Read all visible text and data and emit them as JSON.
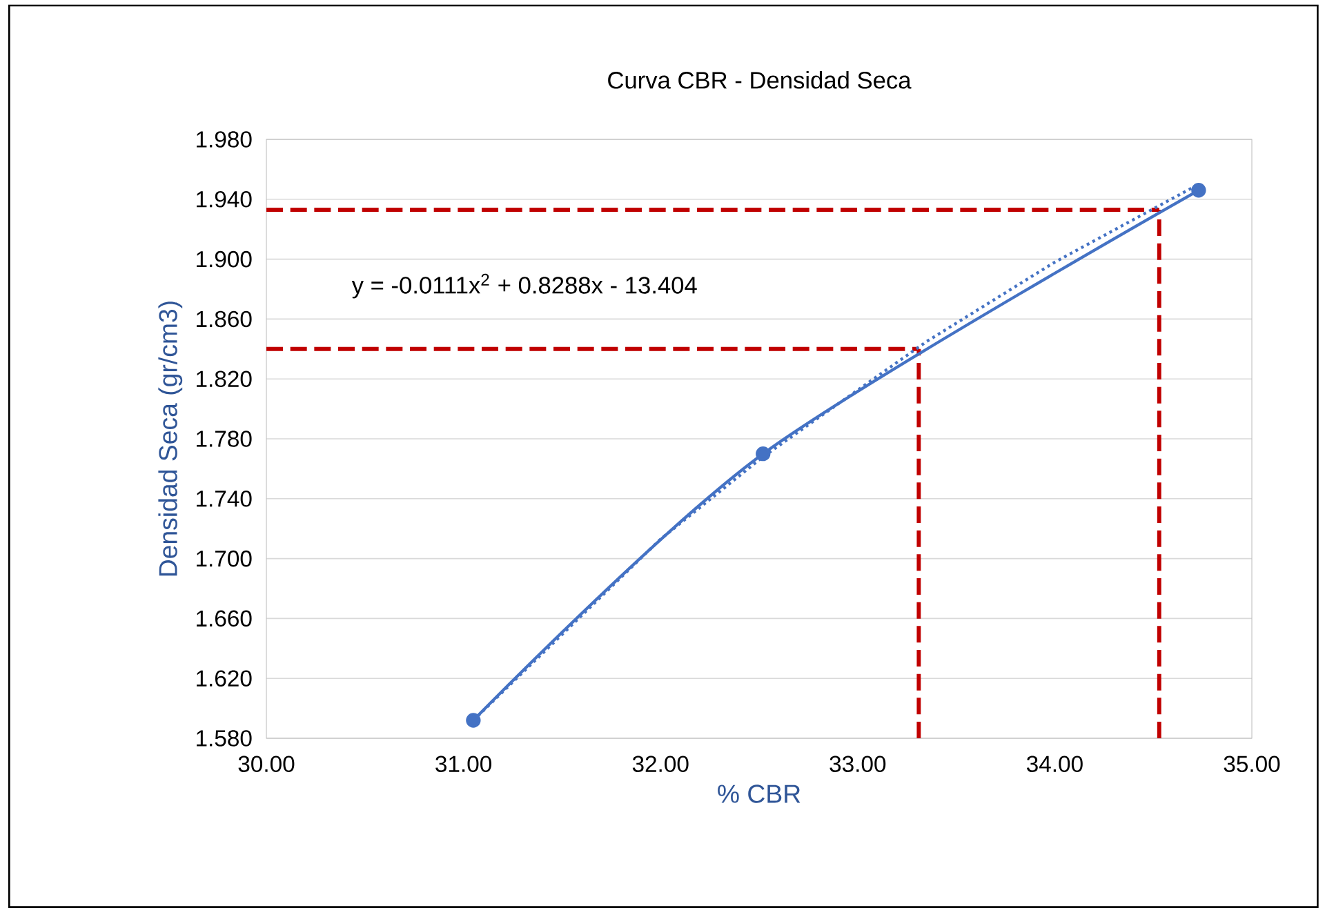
{
  "chart_data": {
    "type": "line",
    "title": "Curva CBR - Densidad Seca",
    "xlabel": "% CBR",
    "ylabel": "Densidad Seca (gr/cm3)",
    "series": [
      {
        "color": "#4472c4",
        "x": [
          31.05,
          32.52,
          34.73
        ],
        "values": [
          1.592,
          1.77,
          1.946
        ],
        "marker": "circle",
        "line_style": "solid"
      },
      {
        "type": "line",
        "color": "#4472c4",
        "x": [
          31.05,
          32.0,
          32.52,
          33.35,
          34.0,
          34.73
        ],
        "values": [
          1.592,
          1.713,
          1.768,
          1.845,
          1.898,
          1.95
        ],
        "marker": "none",
        "line_style": "dotted"
      }
    ],
    "xlim": [
      30,
      35
    ],
    "ylim": [
      1.58,
      1.98
    ],
    "xticks": [
      {
        "value": 30,
        "label": "30.00"
      },
      {
        "value": 31,
        "label": "31.00"
      },
      {
        "value": 32,
        "label": "32.00"
      },
      {
        "value": 33,
        "label": "33.00"
      },
      {
        "value": 34,
        "label": "34.00"
      },
      {
        "value": 35,
        "label": "35.00"
      }
    ],
    "yticks": [
      {
        "value": 1.58,
        "label": "1.580"
      },
      {
        "value": 1.62,
        "label": "1.620"
      },
      {
        "value": 1.66,
        "label": "1.660"
      },
      {
        "value": 1.7,
        "label": "1.700"
      },
      {
        "value": 1.74,
        "label": "1.740"
      },
      {
        "value": 1.78,
        "label": "1.780"
      },
      {
        "value": 1.82,
        "label": "1.820"
      },
      {
        "value": 1.86,
        "label": "1.860"
      },
      {
        "value": 1.9,
        "label": "1.900"
      },
      {
        "value": 1.94,
        "label": "1.940"
      },
      {
        "value": 1.98,
        "label": "1.980"
      }
    ],
    "grid": "y",
    "ref_lines": [
      {
        "axis": "y",
        "value": 1.84,
        "color": "#c00000",
        "line_style": "dashed"
      },
      {
        "axis": "y",
        "value": 1.933,
        "color": "#c00000",
        "line_style": "dashed"
      },
      {
        "axis": "x",
        "value": 33.31,
        "color": "#c00000",
        "line_style": "dashed"
      },
      {
        "axis": "x",
        "value": 34.53,
        "color": "#c00000",
        "line_style": "dashed"
      }
    ],
    "annotations": [
      "y = -0.0111x$^{2}$ + 0.8288x - 13.404"
    ]
  }
}
